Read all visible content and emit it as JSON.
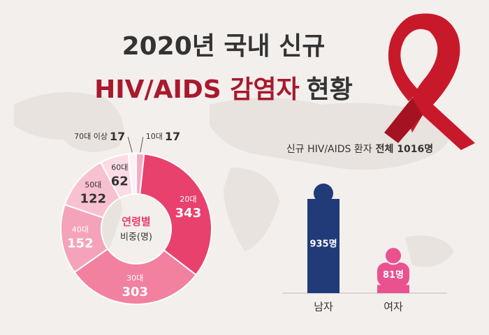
{
  "title_line1": "2020년 국내 신규",
  "title_line2_highlight": "HIV/AIDS 감염자",
  "title_line2_rest": "현황",
  "chart_data": [
    {
      "type": "pie",
      "center_label": "연령별",
      "center_sublabel": "비중(명)",
      "categories": [
        "10대",
        "20대",
        "30대",
        "40대",
        "50대",
        "60대",
        "70대 이상"
      ],
      "values": [
        17,
        343,
        303,
        152,
        122,
        62,
        17
      ],
      "colors": [
        "#f4adc2",
        "#e8416d",
        "#f2809f",
        "#f5a3bb",
        "#f8c1d1",
        "#fbdbe5",
        "#fdf0f4"
      ]
    },
    {
      "type": "bar",
      "subtitle": "신규 HIV/AIDS 환자",
      "subtitle_strong": "전체 1016명",
      "categories": [
        "남자",
        "여자"
      ],
      "values": [
        935,
        81
      ],
      "value_labels": [
        "935명",
        "81명"
      ],
      "colors": [
        "#213a78",
        "#e9528f"
      ]
    }
  ]
}
